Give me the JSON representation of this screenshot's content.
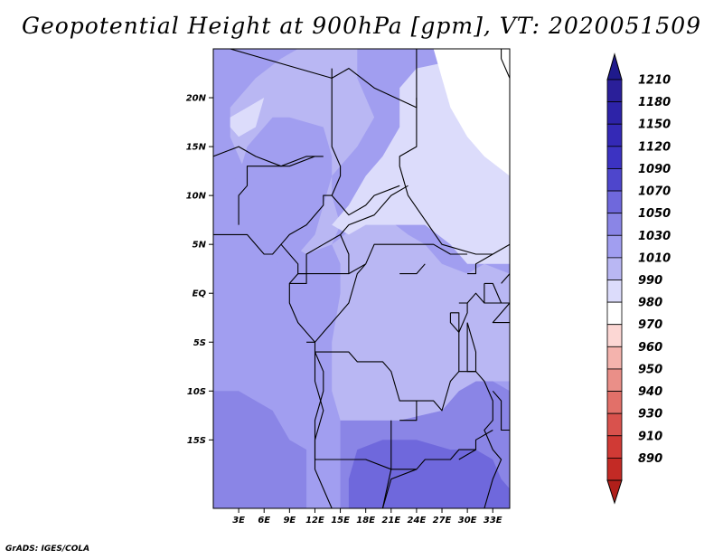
{
  "title": "Geopotential Height at 900hPa [gpm], VT: 2020051509",
  "credit": "GrADS: IGES/COLA",
  "map": {
    "lon_range": [
      0,
      35
    ],
    "lat_range": [
      -22,
      25
    ],
    "lat_ticks": [
      {
        "value": 20,
        "label": "20N"
      },
      {
        "value": 15,
        "label": "15N"
      },
      {
        "value": 10,
        "label": "10N"
      },
      {
        "value": 5,
        "label": "5N"
      },
      {
        "value": 0,
        "label": "EQ"
      },
      {
        "value": -5,
        "label": "5S"
      },
      {
        "value": -10,
        "label": "10S"
      },
      {
        "value": -15,
        "label": "15S"
      }
    ],
    "lon_ticks": [
      {
        "value": 3,
        "label": "3E"
      },
      {
        "value": 6,
        "label": "6E"
      },
      {
        "value": 9,
        "label": "9E"
      },
      {
        "value": 12,
        "label": "12E"
      },
      {
        "value": 15,
        "label": "15E"
      },
      {
        "value": 18,
        "label": "18E"
      },
      {
        "value": 21,
        "label": "21E"
      },
      {
        "value": 24,
        "label": "24E"
      },
      {
        "value": 27,
        "label": "27E"
      },
      {
        "value": 30,
        "label": "30E"
      },
      {
        "value": 33,
        "label": "33E"
      }
    ],
    "field_regions": [
      {
        "level": 1070,
        "color": "#8a85e6",
        "poly": [
          [
            0,
            -10
          ],
          [
            3,
            -10
          ],
          [
            7,
            -12
          ],
          [
            9,
            -15
          ],
          [
            11,
            -16
          ],
          [
            11,
            -22
          ],
          [
            0,
            -22
          ]
        ]
      },
      {
        "level": 1070,
        "color": "#8a85e6",
        "poly": [
          [
            15,
            -13
          ],
          [
            19,
            -13
          ],
          [
            22,
            -13
          ],
          [
            27,
            -12
          ],
          [
            29,
            -10
          ],
          [
            31,
            -9
          ],
          [
            33,
            -9
          ],
          [
            35,
            -10
          ],
          [
            35,
            -22
          ],
          [
            15,
            -22
          ]
        ]
      },
      {
        "level": 1090,
        "color": "#6f68dc",
        "poly": [
          [
            17,
            -16
          ],
          [
            20,
            -15
          ],
          [
            24,
            -15
          ],
          [
            28,
            -16
          ],
          [
            31,
            -16
          ],
          [
            33,
            -17
          ],
          [
            34,
            -19
          ],
          [
            35,
            -20
          ],
          [
            35,
            -22
          ],
          [
            16,
            -22
          ],
          [
            16,
            -19
          ]
        ]
      },
      {
        "level": 1030,
        "color": "#b9b7f3",
        "poly": [
          [
            14,
            5
          ],
          [
            17,
            7
          ],
          [
            20,
            8
          ],
          [
            23,
            6
          ],
          [
            25,
            5
          ],
          [
            27,
            3
          ],
          [
            30,
            2
          ],
          [
            32,
            3
          ],
          [
            35,
            2
          ],
          [
            35,
            -9
          ],
          [
            33,
            -9
          ],
          [
            31,
            -9
          ],
          [
            29,
            -10
          ],
          [
            27,
            -12
          ],
          [
            22,
            -13
          ],
          [
            19,
            -13
          ],
          [
            15,
            -13
          ],
          [
            14,
            -10
          ],
          [
            14,
            -5
          ],
          [
            15,
            0
          ],
          [
            15,
            3
          ]
        ]
      },
      {
        "level": 1030,
        "color": "#b9b7f3",
        "poly": [
          [
            10,
            25
          ],
          [
            17,
            25
          ],
          [
            17,
            22
          ],
          [
            19,
            18
          ],
          [
            17,
            15
          ],
          [
            14,
            12
          ],
          [
            14,
            10
          ],
          [
            15,
            7
          ],
          [
            14,
            5
          ],
          [
            11,
            4
          ],
          [
            9,
            5
          ],
          [
            9,
            9
          ],
          [
            6,
            11
          ],
          [
            4,
            12
          ],
          [
            3,
            14
          ],
          [
            2,
            16
          ],
          [
            2,
            19
          ],
          [
            5,
            22
          ],
          [
            8,
            24
          ]
        ]
      },
      {
        "level": 1050,
        "color": "#a19ef0",
        "poly": [
          [
            0,
            10
          ],
          [
            3,
            12
          ],
          [
            4,
            15
          ],
          [
            7,
            18
          ],
          [
            9,
            18
          ],
          [
            13,
            17
          ],
          [
            14,
            14
          ],
          [
            14,
            12
          ],
          [
            13,
            9
          ],
          [
            12,
            6
          ],
          [
            10,
            4
          ],
          [
            8,
            3
          ],
          [
            5,
            4
          ],
          [
            3,
            5
          ],
          [
            0,
            6
          ]
        ]
      },
      {
        "level": 1010,
        "color": "#dcdcfb",
        "poly": [
          [
            14,
            7
          ],
          [
            16,
            9
          ],
          [
            18,
            12
          ],
          [
            20,
            14
          ],
          [
            22,
            17
          ],
          [
            22,
            21
          ],
          [
            24,
            23
          ],
          [
            35,
            25
          ],
          [
            35,
            3
          ],
          [
            32,
            3
          ],
          [
            30,
            3
          ],
          [
            28,
            5
          ],
          [
            25,
            7
          ],
          [
            22,
            7
          ],
          [
            18,
            7
          ],
          [
            16,
            6
          ]
        ]
      },
      {
        "level": 1010,
        "color": "#dcdcfb",
        "poly": [
          [
            2,
            18
          ],
          [
            4,
            19
          ],
          [
            6,
            20
          ],
          [
            5,
            17
          ],
          [
            3,
            16
          ],
          [
            2,
            17
          ]
        ]
      },
      {
        "level": 990,
        "color": "#ffffff",
        "poly": [
          [
            26,
            25
          ],
          [
            35,
            25
          ],
          [
            35,
            12
          ],
          [
            32,
            14
          ],
          [
            30,
            16
          ],
          [
            28,
            19
          ],
          [
            27,
            22
          ]
        ]
      }
    ],
    "borders": [
      [
        [
          2,
          25
        ],
        [
          10,
          23
        ],
        [
          14,
          22
        ],
        [
          16,
          23
        ],
        [
          19,
          21
        ],
        [
          24,
          19
        ],
        [
          24,
          25
        ]
      ],
      [
        [
          24,
          20
        ],
        [
          24,
          15
        ],
        [
          22,
          14
        ],
        [
          22,
          13
        ],
        [
          23,
          10
        ],
        [
          27,
          5
        ],
        [
          31,
          4
        ],
        [
          33,
          4
        ],
        [
          35,
          5
        ]
      ],
      [
        [
          14,
          23
        ],
        [
          14,
          18
        ],
        [
          14,
          15
        ],
        [
          15,
          13
        ],
        [
          15,
          12
        ],
        [
          14,
          10
        ],
        [
          15,
          9
        ],
        [
          16,
          8
        ],
        [
          18,
          9
        ],
        [
          19,
          10
        ],
        [
          22,
          11
        ]
      ],
      [
        [
          0,
          14
        ],
        [
          3,
          15
        ],
        [
          5,
          14
        ],
        [
          8,
          13
        ],
        [
          11,
          14
        ],
        [
          13,
          14
        ]
      ],
      [
        [
          3,
          7
        ],
        [
          3,
          10
        ],
        [
          4,
          11
        ],
        [
          4,
          13
        ],
        [
          7,
          13
        ],
        [
          9,
          13
        ],
        [
          12,
          14
        ]
      ],
      [
        [
          8,
          5
        ],
        [
          9,
          6
        ],
        [
          11,
          7
        ],
        [
          13,
          9
        ],
        [
          13,
          10
        ],
        [
          14,
          10
        ]
      ],
      [
        [
          10,
          2
        ],
        [
          11,
          2
        ],
        [
          11,
          4
        ],
        [
          13,
          5
        ],
        [
          15,
          6
        ],
        [
          16,
          7
        ],
        [
          19,
          8
        ],
        [
          21,
          10
        ],
        [
          23,
          11
        ]
      ],
      [
        [
          15,
          6
        ],
        [
          16,
          4
        ],
        [
          16,
          2
        ],
        [
          18,
          3
        ],
        [
          19,
          5
        ],
        [
          22,
          5
        ],
        [
          24,
          5
        ],
        [
          26,
          5
        ],
        [
          28,
          4
        ],
        [
          30,
          4
        ]
      ],
      [
        [
          10,
          2
        ],
        [
          11,
          2
        ],
        [
          11,
          1
        ],
        [
          9,
          1
        ]
      ],
      [
        [
          11,
          2
        ],
        [
          13,
          2
        ],
        [
          14,
          2
        ],
        [
          15,
          2
        ],
        [
          16,
          2
        ]
      ],
      [
        [
          11,
          -5
        ],
        [
          12,
          -5
        ],
        [
          13,
          -4
        ],
        [
          14,
          -3
        ],
        [
          15,
          -2
        ],
        [
          16,
          -1
        ],
        [
          17,
          2
        ],
        [
          18,
          3
        ]
      ],
      [
        [
          12,
          -6
        ],
        [
          16,
          -6
        ],
        [
          17,
          -7
        ],
        [
          20,
          -7
        ],
        [
          21,
          -8
        ],
        [
          22,
          -11
        ],
        [
          24,
          -11
        ],
        [
          26,
          -11
        ],
        [
          27,
          -12
        ],
        [
          28,
          -9
        ],
        [
          29,
          -8
        ]
      ],
      [
        [
          12,
          -17
        ],
        [
          18,
          -17
        ],
        [
          21,
          -18
        ],
        [
          24,
          -18
        ],
        [
          25,
          -17
        ],
        [
          28,
          -17
        ],
        [
          29,
          -16
        ],
        [
          31,
          -16
        ]
      ],
      [
        [
          21,
          -13
        ],
        [
          21,
          -18
        ],
        [
          20,
          -22
        ]
      ],
      [
        [
          20,
          -22
        ],
        [
          21,
          -19
        ],
        [
          24,
          -18
        ]
      ],
      [
        [
          12,
          -6
        ],
        [
          12,
          -9
        ],
        [
          13,
          -12
        ],
        [
          12,
          -15
        ],
        [
          12,
          -17
        ]
      ],
      [
        [
          22,
          -13
        ],
        [
          24,
          -13
        ],
        [
          24,
          -11
        ]
      ],
      [
        [
          30,
          -1
        ],
        [
          30,
          -2
        ],
        [
          29,
          -4
        ],
        [
          29,
          -8
        ],
        [
          31,
          -8
        ],
        [
          32,
          -9
        ],
        [
          33,
          -11
        ],
        [
          33,
          -13
        ],
        [
          32,
          -14
        ],
        [
          33,
          -16
        ],
        [
          34,
          -17
        ],
        [
          33,
          -19
        ],
        [
          32,
          -22
        ]
      ],
      [
        [
          29,
          -17
        ],
        [
          31,
          -16
        ],
        [
          31,
          -15
        ],
        [
          33,
          -14
        ]
      ],
      [
        [
          30,
          2
        ],
        [
          31,
          2
        ],
        [
          31,
          3
        ],
        [
          33,
          4
        ]
      ],
      [
        [
          29,
          -1
        ],
        [
          30,
          -1
        ],
        [
          31,
          0
        ],
        [
          32,
          -1
        ],
        [
          34,
          -1
        ],
        [
          35,
          -1
        ]
      ],
      [
        [
          34,
          1
        ],
        [
          35,
          2
        ]
      ]
    ],
    "coast": [
      [
        [
          0,
          6
        ],
        [
          2,
          6
        ],
        [
          4,
          6
        ],
        [
          6,
          4
        ],
        [
          7,
          4
        ],
        [
          8,
          5
        ],
        [
          9,
          4
        ],
        [
          10,
          3
        ],
        [
          10,
          2
        ],
        [
          9,
          1
        ],
        [
          9,
          0
        ],
        [
          9,
          -1
        ],
        [
          10,
          -3
        ],
        [
          12,
          -5
        ],
        [
          12,
          -6
        ],
        [
          13,
          -8
        ],
        [
          13,
          -10
        ],
        [
          12,
          -13
        ],
        [
          12,
          -16
        ],
        [
          12,
          -18
        ],
        [
          13,
          -20
        ],
        [
          14,
          -22
        ]
      ],
      [
        [
          34,
          25
        ],
        [
          34,
          24
        ],
        [
          35,
          22
        ]
      ],
      [
        [
          30,
          -3
        ],
        [
          30,
          -5
        ],
        [
          30,
          -7
        ],
        [
          30,
          -8
        ],
        [
          31,
          -8
        ],
        [
          31,
          -6
        ],
        [
          30,
          -3
        ]
      ],
      [
        [
          33,
          -10
        ],
        [
          34,
          -11
        ],
        [
          34,
          -14
        ],
        [
          35,
          -14
        ]
      ],
      [
        [
          32,
          1
        ],
        [
          33,
          1
        ],
        [
          34,
          -1
        ],
        [
          32,
          -1
        ],
        [
          32,
          1
        ]
      ],
      [
        [
          35,
          -1
        ],
        [
          33,
          -3
        ],
        [
          35,
          -3
        ]
      ],
      [
        [
          28,
          -2
        ],
        [
          29,
          -2
        ],
        [
          29,
          -4
        ],
        [
          28,
          -3
        ],
        [
          28,
          -2
        ]
      ],
      [
        [
          22,
          2
        ],
        [
          24,
          2
        ],
        [
          25,
          3
        ]
      ]
    ]
  },
  "colorbar": {
    "levels": [
      {
        "label": "1210",
        "color": "#2a1f99"
      },
      {
        "label": "1180",
        "color": "#2d23a8"
      },
      {
        "label": "1150",
        "color": "#3429b6"
      },
      {
        "label": "1120",
        "color": "#3c33c2"
      },
      {
        "label": "1090",
        "color": "#4e46cc"
      },
      {
        "label": "1070",
        "color": "#6f68dc"
      },
      {
        "label": "1050",
        "color": "#8a85e6"
      },
      {
        "label": "1030",
        "color": "#a19ef0"
      },
      {
        "label": "1010",
        "color": "#b9b7f3"
      },
      {
        "label": "990",
        "color": "#dcdcfb"
      },
      {
        "label": "980",
        "color": "#ffffff"
      },
      {
        "label": "970",
        "color": "#fcd7d4"
      },
      {
        "label": "960",
        "color": "#f4b3ad"
      },
      {
        "label": "950",
        "color": "#ea8f88"
      },
      {
        "label": "940",
        "color": "#e27069"
      },
      {
        "label": "930",
        "color": "#d9524d"
      },
      {
        "label": "910",
        "color": "#d03a35"
      },
      {
        "label": "890",
        "color": "#c32a25"
      }
    ],
    "top_cap": "#1f1a8c",
    "bottom_cap": "#b01f1a"
  }
}
